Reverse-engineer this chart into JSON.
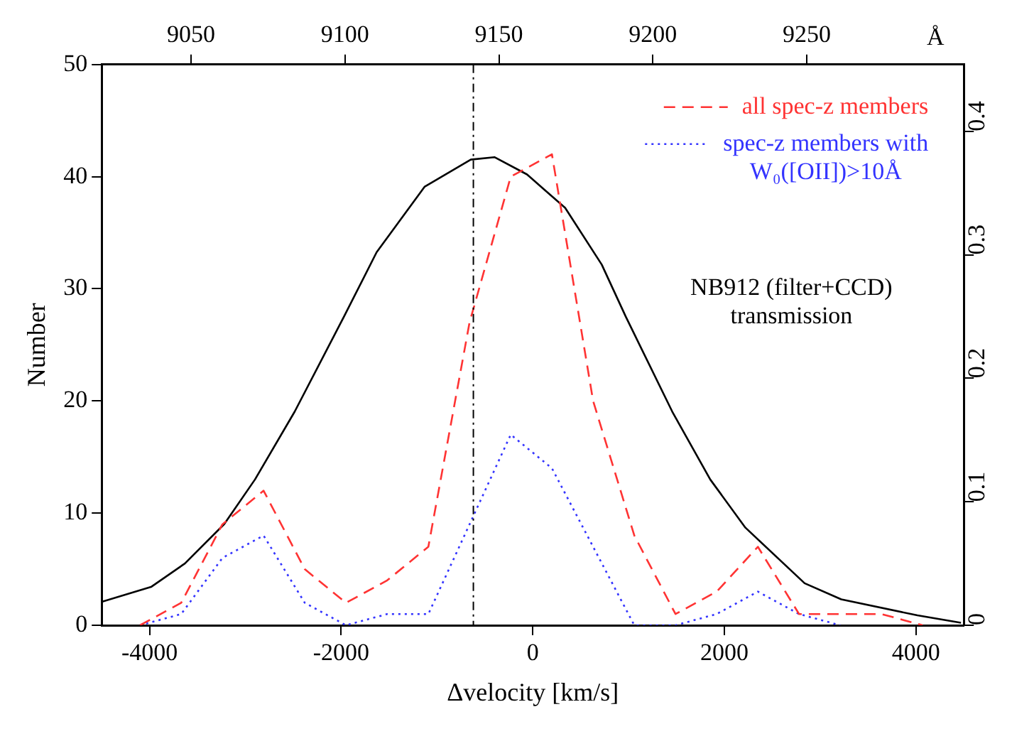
{
  "chart_data": {
    "type": "line",
    "xlabel": "Δvelocity [km/s]",
    "ylabel": "Number",
    "x2label": "Å",
    "xlim": [
      -4500,
      4500
    ],
    "xticks": [
      -4000,
      -2000,
      0,
      2000,
      4000
    ],
    "x2lim": [
      9021,
      9301
    ],
    "x2ticks": [
      9050,
      9100,
      9150,
      9200,
      9250
    ],
    "ylim": [
      0,
      50
    ],
    "yticks": [
      0,
      10,
      20,
      30,
      40,
      50
    ],
    "y2lim": [
      0,
      0.454
    ],
    "y2ticks": [
      0,
      0.1,
      0.2,
      0.3,
      0.4
    ],
    "grid": false,
    "legend": "top right",
    "marker": "none",
    "ref_lines": [
      {
        "axis": "x",
        "value": -620,
        "color": "#000000"
      }
    ],
    "series": [
      {
        "name": "all spec-z members",
        "color": "#ff3333",
        "line_style": "dashed",
        "x": [
          -4100,
          -3670,
          -3240,
          -2810,
          -2380,
          -1950,
          -1520,
          -1090,
          -660,
          -230,
          200,
          630,
          1060,
          1490,
          1920,
          2350,
          2780,
          3210,
          3640,
          4070
        ],
        "values": [
          0,
          2,
          9,
          12,
          5,
          2,
          4,
          7,
          27,
          40,
          42,
          20,
          8,
          1,
          3,
          7,
          1,
          1,
          1,
          0
        ]
      },
      {
        "name": "spec-z members with W₀([OII])>10Å",
        "color": "#3333ff",
        "line_style": "dotted",
        "x": [
          -4100,
          -3670,
          -3240,
          -2810,
          -2380,
          -1950,
          -1520,
          -1090,
          -660,
          -230,
          200,
          630,
          1060,
          1490,
          1920,
          2350,
          2780,
          3210
        ],
        "values": [
          0,
          1,
          6,
          8,
          2,
          0,
          1,
          1,
          9,
          17,
          14,
          7,
          0,
          0,
          1,
          3,
          1,
          0
        ]
      },
      {
        "name": "NB912 (filter+CCD) transmission",
        "color": "#000000",
        "line_style": "solid",
        "axis": "y2",
        "x": [
          -4500,
          -3985,
          -3632,
          -3220,
          -2900,
          -2485,
          -1970,
          -1630,
          -1130,
          -647,
          -400,
          -60,
          338,
          720,
          970,
          1456,
          1853,
          2220,
          2838,
          3220,
          4015,
          4470
        ],
        "values": [
          0.019,
          0.031,
          0.05,
          0.082,
          0.118,
          0.173,
          0.25,
          0.302,
          0.355,
          0.377,
          0.379,
          0.365,
          0.338,
          0.292,
          0.25,
          0.173,
          0.118,
          0.079,
          0.034,
          0.021,
          0.008,
          0.002
        ]
      }
    ]
  }
}
